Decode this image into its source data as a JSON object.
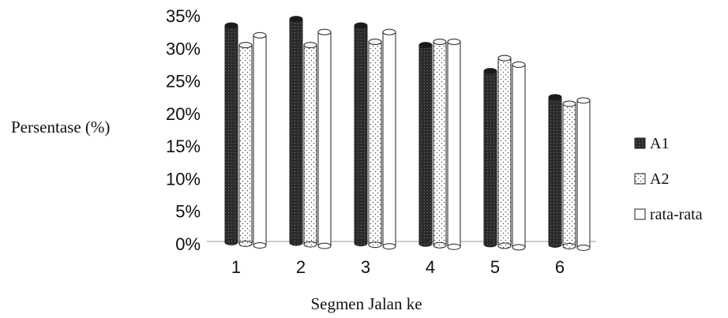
{
  "chart_data": {
    "type": "bar",
    "title": "",
    "xlabel": "Segmen Jalan ke",
    "ylabel": "Persentase (%)",
    "categories": [
      "1",
      "2",
      "3",
      "4",
      "5",
      "6"
    ],
    "y_ticks": [
      "0%",
      "5%",
      "10%",
      "15%",
      "20%",
      "25%",
      "30%",
      "35%"
    ],
    "ylim": [
      0,
      35
    ],
    "grid": false,
    "legend_position": "right",
    "series": [
      {
        "name": "A1",
        "values": [
          33.5,
          34.5,
          33.5,
          30.5,
          26.5,
          22.5
        ]
      },
      {
        "name": "A2",
        "values": [
          30.5,
          30.5,
          31.0,
          31.0,
          28.5,
          21.5
        ]
      },
      {
        "name": "rata-rata",
        "values": [
          32.0,
          32.5,
          32.5,
          31.0,
          27.5,
          22.0
        ]
      }
    ]
  }
}
